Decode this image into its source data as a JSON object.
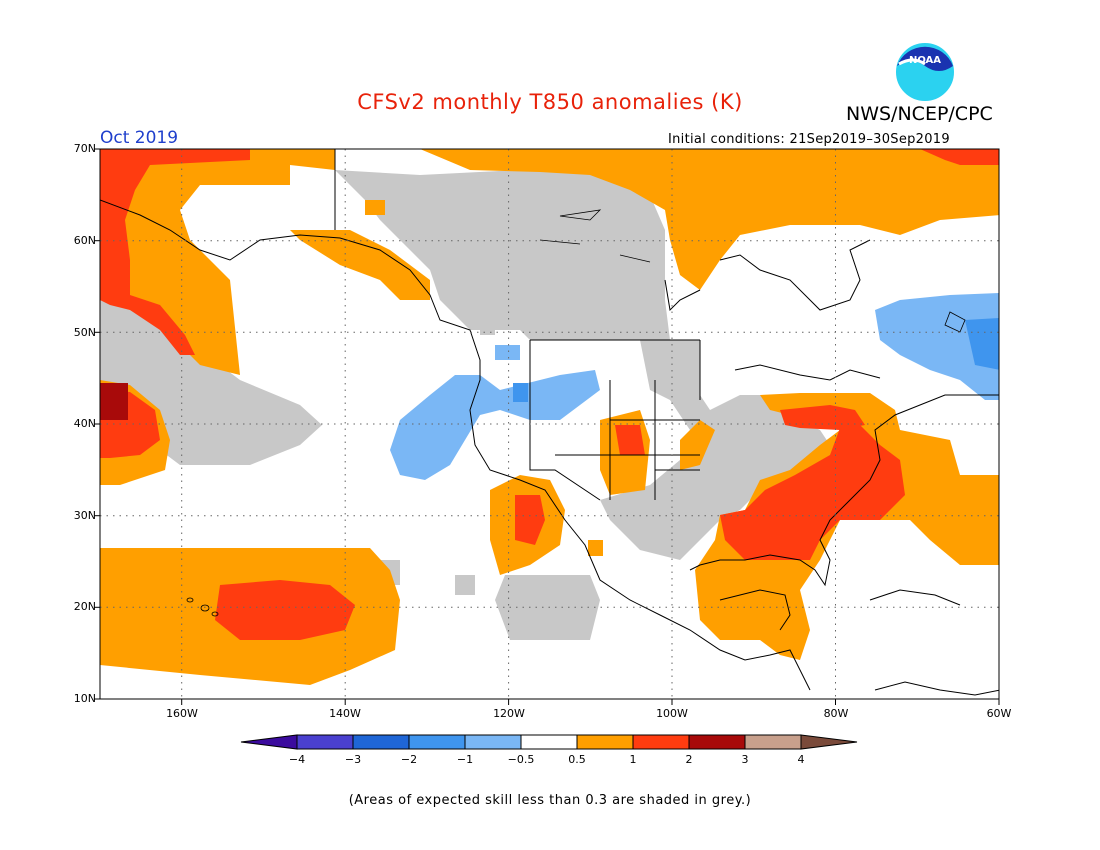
{
  "title": "CFSv2 monthly T850 anomalies (K)",
  "agency": "NWS/NCEP/CPC",
  "logo_text": "NOAA",
  "month": "Oct 2019",
  "initial_conditions": "Initial conditions: 21Sep2019–30Sep2019",
  "lat_labels": [
    "70N",
    "60N",
    "50N",
    "40N",
    "30N",
    "20N",
    "10N"
  ],
  "lon_labels": [
    "160W",
    "140W",
    "120W",
    "100W",
    "80W",
    "60W"
  ],
  "legend": {
    "ticks": [
      "−4",
      "−3",
      "−2",
      "−1",
      "−0.5",
      "0.5",
      "1",
      "2",
      "3",
      "4"
    ],
    "colors": [
      "#3b0b9e",
      "#4a40cf",
      "#1f66d6",
      "#3f95ee",
      "#7ab7f5",
      "#ffffff",
      "#ff9f00",
      "#ff3c10",
      "#a80a0a",
      "#c8a08c",
      "#7a4a3a"
    ]
  },
  "note": "(Areas of expected skill less than 0.3 are shaded in grey.)"
}
